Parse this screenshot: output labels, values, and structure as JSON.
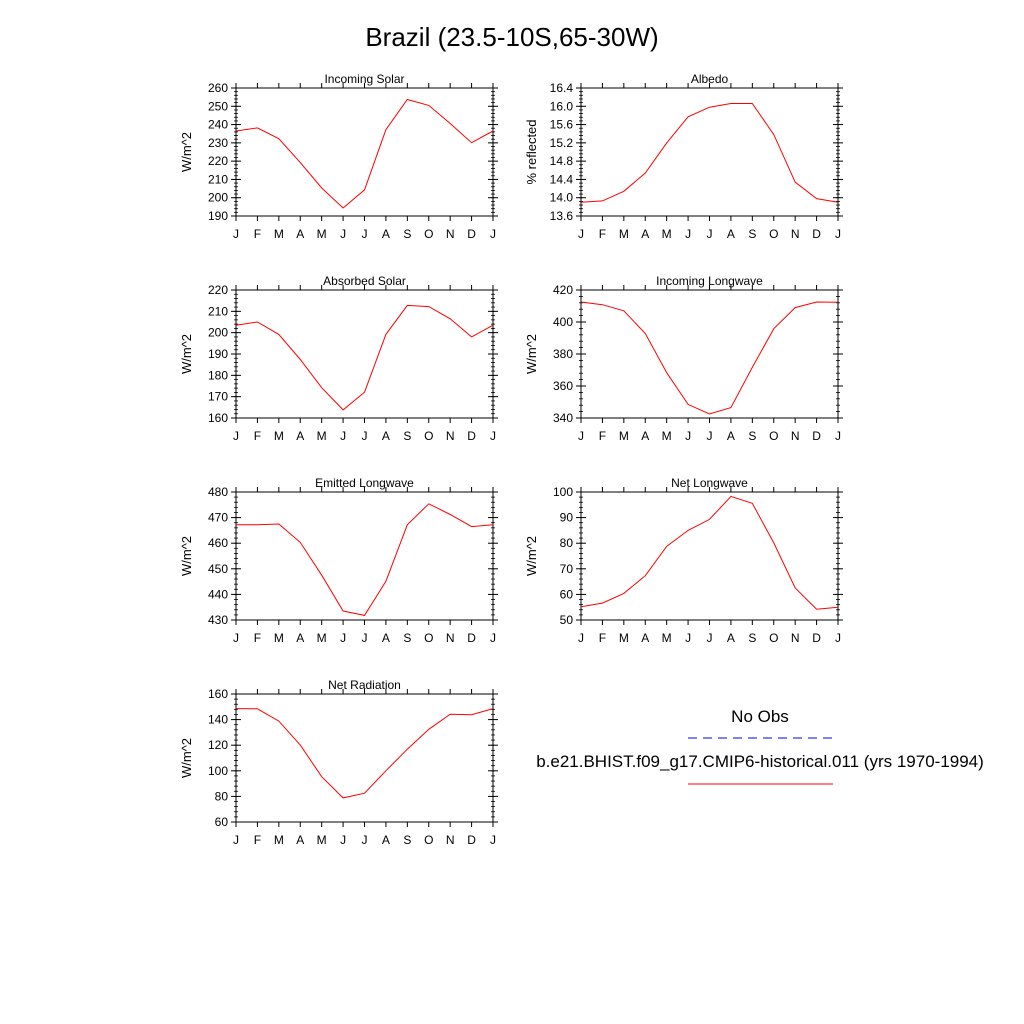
{
  "title": "Brazil (23.5-10S,65-30W)",
  "month_labels": [
    "J",
    "F",
    "M",
    "A",
    "M",
    "J",
    "J",
    "A",
    "S",
    "O",
    "N",
    "D",
    "J"
  ],
  "line_color": "#ff0000",
  "obs_color": "#0000ff",
  "legend": {
    "obs_label": "No Obs",
    "model_label": "b.e21.BHIST.f09_g17.CMIP6-historical.011 (yrs 1970-1994)"
  },
  "chart_data": [
    {
      "type": "line",
      "title": "Incoming Solar",
      "ylabel": "W/m^2",
      "ylim": [
        190,
        260
      ],
      "yticks": [
        "190",
        "200",
        "210",
        "220",
        "230",
        "240",
        "250",
        "260"
      ],
      "x": [
        "J",
        "F",
        "M",
        "A",
        "M",
        "J",
        "J",
        "A",
        "S",
        "O",
        "N",
        "D",
        "J"
      ],
      "series": [
        {
          "values": [
            236.5,
            238.2,
            232.3,
            219.2,
            205.3,
            194.4,
            204.3,
            237.2,
            253.7,
            250.5,
            240.6,
            230.1,
            236.5
          ]
        }
      ]
    },
    {
      "type": "line",
      "title": "Albedo",
      "ylabel": "% reflected",
      "ylim": [
        13.6,
        16.4
      ],
      "yticks": [
        "13.6",
        "14.0",
        "14.4",
        "14.8",
        "15.2",
        "15.6",
        "16.0",
        "16.4"
      ],
      "x": [
        "J",
        "F",
        "M",
        "A",
        "M",
        "J",
        "J",
        "A",
        "S",
        "O",
        "N",
        "D",
        "J"
      ],
      "series": [
        {
          "values": [
            13.9,
            13.93,
            14.14,
            14.54,
            15.2,
            15.77,
            15.98,
            16.06,
            16.06,
            15.38,
            14.34,
            13.98,
            13.9
          ]
        }
      ]
    },
    {
      "type": "line",
      "title": "Absorbed Solar",
      "ylabel": "W/m^2",
      "ylim": [
        160,
        220
      ],
      "yticks": [
        "160",
        "170",
        "180",
        "190",
        "200",
        "210",
        "220"
      ],
      "x": [
        "J",
        "F",
        "M",
        "A",
        "M",
        "J",
        "J",
        "A",
        "S",
        "O",
        "N",
        "D",
        "J"
      ],
      "series": [
        {
          "values": [
            203.5,
            205.0,
            199.2,
            187.4,
            174.2,
            163.8,
            172.1,
            199.2,
            212.8,
            212.2,
            206.5,
            198.0,
            203.5
          ]
        }
      ]
    },
    {
      "type": "line",
      "title": "Incoming Longwave",
      "ylabel": "W/m^2",
      "ylim": [
        340,
        420
      ],
      "yticks": [
        "340",
        "360",
        "380",
        "400",
        "420"
      ],
      "x": [
        "J",
        "F",
        "M",
        "A",
        "M",
        "J",
        "J",
        "A",
        "S",
        "O",
        "N",
        "D",
        "J"
      ],
      "series": [
        {
          "values": [
            412.5,
            410.8,
            407.0,
            392.8,
            368.3,
            348.5,
            342.5,
            346.5,
            371.6,
            395.8,
            409.0,
            412.5,
            412.3
          ]
        }
      ]
    },
    {
      "type": "line",
      "title": "Emitted Longwave",
      "ylabel": "W/m^2",
      "ylim": [
        430,
        480
      ],
      "yticks": [
        "430",
        "440",
        "450",
        "460",
        "470",
        "480"
      ],
      "x": [
        "J",
        "F",
        "M",
        "A",
        "M",
        "J",
        "J",
        "A",
        "S",
        "O",
        "N",
        "D",
        "J"
      ],
      "series": [
        {
          "values": [
            467.2,
            467.2,
            467.5,
            460.3,
            447.5,
            433.5,
            431.8,
            445.1,
            467.2,
            475.4,
            471.2,
            466.5,
            467.2
          ]
        }
      ]
    },
    {
      "type": "line",
      "title": "Net Longwave",
      "ylabel": "W/m^2",
      "ylim": [
        50,
        100
      ],
      "yticks": [
        "50",
        "60",
        "70",
        "80",
        "90",
        "100"
      ],
      "x": [
        "J",
        "F",
        "M",
        "A",
        "M",
        "J",
        "J",
        "A",
        "S",
        "O",
        "N",
        "D",
        "J"
      ],
      "series": [
        {
          "values": [
            55.2,
            56.6,
            60.4,
            67.3,
            78.8,
            85.0,
            89.3,
            98.3,
            95.6,
            80.1,
            62.5,
            54.2,
            55.0
          ]
        }
      ]
    },
    {
      "type": "line",
      "title": "Net Radiation",
      "ylabel": "W/m^2",
      "ylim": [
        60,
        160
      ],
      "yticks": [
        "60",
        "80",
        "100",
        "120",
        "140",
        "160"
      ],
      "x": [
        "J",
        "F",
        "M",
        "A",
        "M",
        "J",
        "J",
        "A",
        "S",
        "O",
        "N",
        "D",
        "J"
      ],
      "series": [
        {
          "values": [
            148.6,
            148.4,
            138.8,
            120.1,
            95.4,
            78.8,
            82.5,
            100.0,
            116.9,
            132.4,
            144.2,
            143.8,
            148.6
          ]
        }
      ]
    }
  ]
}
